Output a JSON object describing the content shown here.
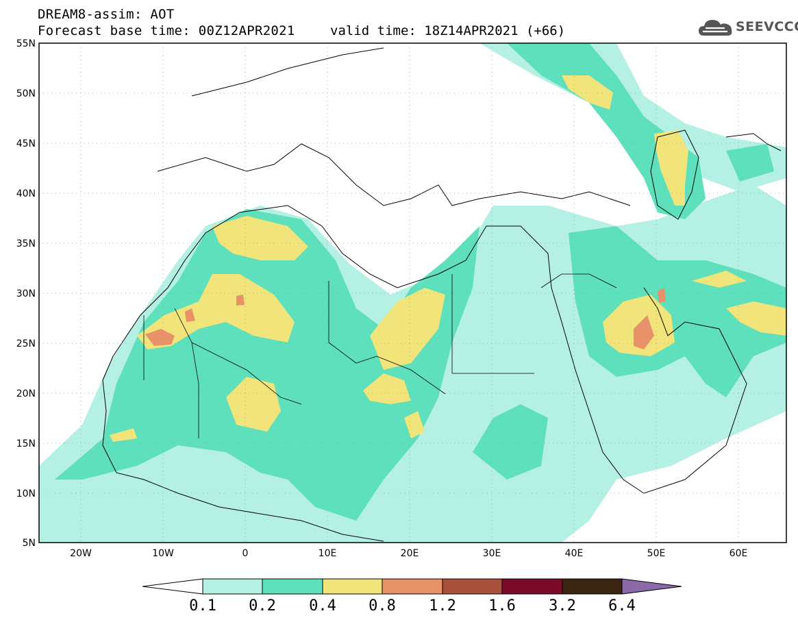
{
  "header": {
    "title": "DREAM8-assim: AOT",
    "base_time_line": "Forecast base time: 00Z12APR2021",
    "valid_time_line": "valid time: 18Z14APR2021 (+66)"
  },
  "logo": {
    "text": "SEEVCCC",
    "icon": "cloud-icon"
  },
  "map": {
    "lon_range": [
      -25,
      65
    ],
    "lat_range": [
      5,
      55
    ],
    "lat_ticks": [
      "55N",
      "50N",
      "45N",
      "40N",
      "35N",
      "30N",
      "25N",
      "20N",
      "15N",
      "10N",
      "5N"
    ],
    "lon_ticks": [
      "20W",
      "10W",
      "0",
      "10E",
      "20E",
      "30E",
      "40E",
      "50E",
      "60E"
    ]
  },
  "colorbar": {
    "levels": [
      "0.1",
      "0.2",
      "0.4",
      "0.8",
      "1.2",
      "1.6",
      "3.2",
      "6.4"
    ],
    "colors": [
      "#ffffff",
      "#b5f0e4",
      "#5ee0bc",
      "#f0e47a",
      "#e8926a",
      "#a8503c",
      "#7a0a28",
      "#3a2612",
      "#8a6aa8"
    ]
  }
}
